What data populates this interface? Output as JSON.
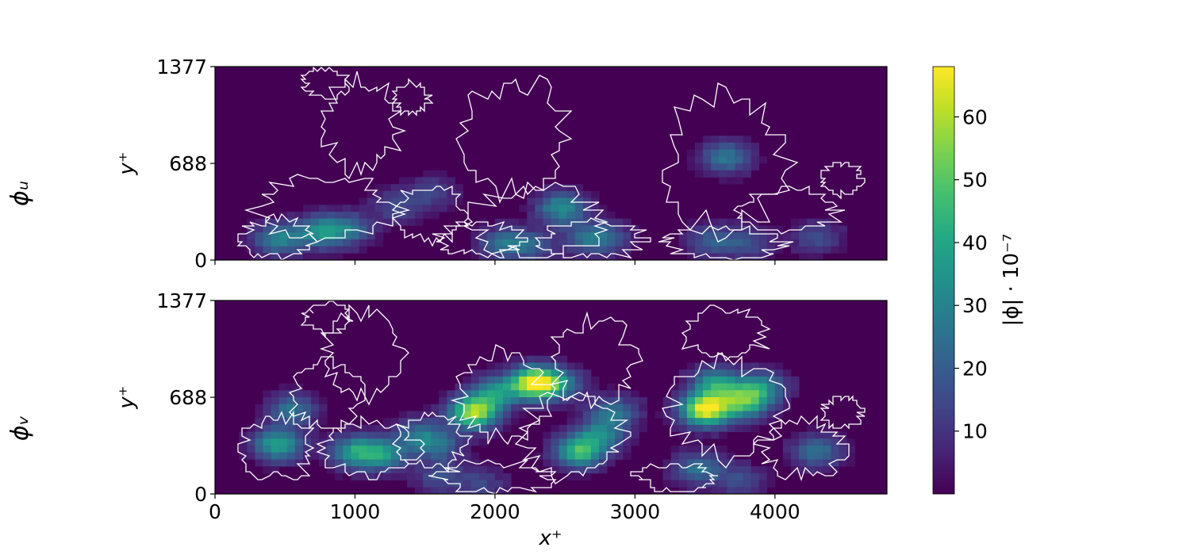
{
  "chart_data": {
    "type": "heatmap",
    "colormap": "viridis",
    "colorbar": {
      "label": "|ϕ| · 10⁻⁷",
      "range": [
        0,
        68
      ],
      "ticks": [
        10,
        20,
        30,
        40,
        50,
        60
      ],
      "tick_labels": [
        "10",
        "20",
        "30",
        "40",
        "50",
        "60"
      ]
    },
    "x_axis": {
      "label": "x⁺",
      "range": [
        0,
        4800
      ],
      "ticks": [
        0,
        1000,
        2000,
        3000,
        4000
      ],
      "tick_labels": [
        "0",
        "1000",
        "2000",
        "3000",
        "4000"
      ]
    },
    "panels": [
      {
        "title": "ϕᵤ",
        "ylabel": "y⁺",
        "y_range": [
          0,
          1377
        ],
        "yticks": [
          0,
          688,
          1377
        ],
        "ytick_labels": [
          "0",
          "688",
          "1377"
        ],
        "hotspots": [
          {
            "x": 450,
            "y": 150,
            "value": 28
          },
          {
            "x": 750,
            "y": 200,
            "value": 30
          },
          {
            "x": 950,
            "y": 220,
            "value": 22
          },
          {
            "x": 1300,
            "y": 380,
            "value": 14
          },
          {
            "x": 1550,
            "y": 480,
            "value": 12
          },
          {
            "x": 2050,
            "y": 120,
            "value": 20
          },
          {
            "x": 2250,
            "y": 100,
            "value": 18
          },
          {
            "x": 2480,
            "y": 370,
            "value": 32
          },
          {
            "x": 2650,
            "y": 150,
            "value": 18
          },
          {
            "x": 2800,
            "y": 160,
            "value": 16
          },
          {
            "x": 3550,
            "y": 140,
            "value": 18
          },
          {
            "x": 3650,
            "y": 730,
            "value": 26
          },
          {
            "x": 3800,
            "y": 120,
            "value": 14
          },
          {
            "x": 4300,
            "y": 160,
            "value": 14
          }
        ],
        "contour_regions": [
          {
            "x": 800,
            "y": 380,
            "rx": 500,
            "ry": 230
          },
          {
            "x": 450,
            "y": 160,
            "rx": 260,
            "ry": 140
          },
          {
            "x": 1550,
            "y": 330,
            "rx": 260,
            "ry": 200
          },
          {
            "x": 2300,
            "y": 280,
            "rx": 480,
            "ry": 250
          },
          {
            "x": 2150,
            "y": 870,
            "rx": 380,
            "ry": 420
          },
          {
            "x": 1900,
            "y": 150,
            "rx": 300,
            "ry": 120
          },
          {
            "x": 2700,
            "y": 150,
            "rx": 380,
            "ry": 130
          },
          {
            "x": 3650,
            "y": 700,
            "rx": 450,
            "ry": 500
          },
          {
            "x": 3650,
            "y": 120,
            "rx": 420,
            "ry": 110
          },
          {
            "x": 4100,
            "y": 350,
            "rx": 350,
            "ry": 150
          },
          {
            "x": 4480,
            "y": 580,
            "rx": 150,
            "ry": 110
          },
          {
            "x": 1050,
            "y": 960,
            "rx": 280,
            "ry": 330
          },
          {
            "x": 800,
            "y": 1250,
            "rx": 170,
            "ry": 110
          },
          {
            "x": 1400,
            "y": 1150,
            "rx": 130,
            "ry": 110
          }
        ]
      },
      {
        "title": "ϕᵥ",
        "ylabel": "y⁺",
        "y_range": [
          0,
          1377
        ],
        "yticks": [
          0,
          688,
          1377
        ],
        "ytick_labels": [
          "0",
          "688",
          "1377"
        ],
        "hotspots": [
          {
            "x": 450,
            "y": 350,
            "value": 38
          },
          {
            "x": 550,
            "y": 600,
            "value": 24
          },
          {
            "x": 1000,
            "y": 300,
            "value": 34
          },
          {
            "x": 1200,
            "y": 280,
            "value": 30
          },
          {
            "x": 1450,
            "y": 420,
            "value": 22
          },
          {
            "x": 1600,
            "y": 340,
            "value": 20
          },
          {
            "x": 1850,
            "y": 580,
            "value": 58
          },
          {
            "x": 2000,
            "y": 720,
            "value": 30
          },
          {
            "x": 2280,
            "y": 790,
            "value": 64
          },
          {
            "x": 2450,
            "y": 780,
            "value": 26
          },
          {
            "x": 2600,
            "y": 300,
            "value": 44
          },
          {
            "x": 2750,
            "y": 420,
            "value": 26
          },
          {
            "x": 2850,
            "y": 580,
            "value": 24
          },
          {
            "x": 3500,
            "y": 600,
            "value": 66
          },
          {
            "x": 3580,
            "y": 780,
            "value": 36
          },
          {
            "x": 3780,
            "y": 650,
            "value": 42
          },
          {
            "x": 3900,
            "y": 760,
            "value": 30
          },
          {
            "x": 3450,
            "y": 180,
            "value": 24
          },
          {
            "x": 4300,
            "y": 300,
            "value": 24
          },
          {
            "x": 1600,
            "y": 120,
            "value": 14
          },
          {
            "x": 1900,
            "y": 80,
            "value": 12
          },
          {
            "x": 3750,
            "y": 100,
            "value": 14
          }
        ],
        "contour_regions": [
          {
            "x": 450,
            "y": 330,
            "rx": 260,
            "ry": 230
          },
          {
            "x": 1100,
            "y": 330,
            "rx": 350,
            "ry": 200
          },
          {
            "x": 1550,
            "y": 380,
            "rx": 250,
            "ry": 200
          },
          {
            "x": 2050,
            "y": 700,
            "rx": 330,
            "ry": 330
          },
          {
            "x": 2550,
            "y": 400,
            "rx": 380,
            "ry": 300
          },
          {
            "x": 3650,
            "y": 600,
            "rx": 420,
            "ry": 350
          },
          {
            "x": 4200,
            "y": 320,
            "rx": 300,
            "ry": 200
          },
          {
            "x": 800,
            "y": 700,
            "rx": 250,
            "ry": 250
          },
          {
            "x": 1050,
            "y": 1000,
            "rx": 280,
            "ry": 320
          },
          {
            "x": 2700,
            "y": 950,
            "rx": 300,
            "ry": 300
          },
          {
            "x": 3650,
            "y": 1150,
            "rx": 300,
            "ry": 180
          },
          {
            "x": 4480,
            "y": 580,
            "rx": 150,
            "ry": 110
          },
          {
            "x": 800,
            "y": 1250,
            "rx": 170,
            "ry": 110
          },
          {
            "x": 2000,
            "y": 120,
            "rx": 400,
            "ry": 110
          },
          {
            "x": 3300,
            "y": 120,
            "rx": 300,
            "ry": 100
          }
        ]
      }
    ]
  }
}
